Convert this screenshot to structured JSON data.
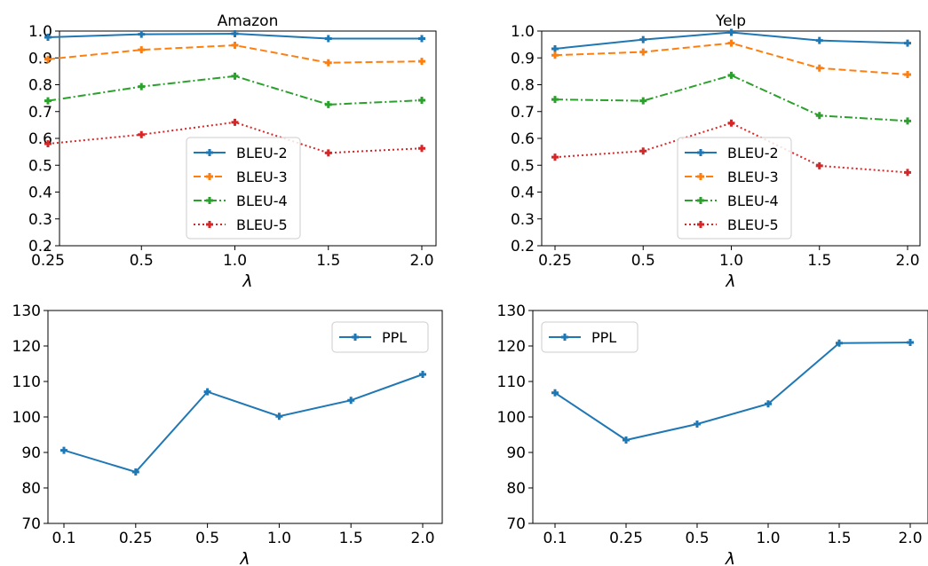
{
  "colors": {
    "BLEU-2": "#1f77b4",
    "BLEU-3": "#ff7f0e",
    "BLEU-4": "#2ca02c",
    "BLEU-5": "#d62728",
    "PPL": "#1f77b4"
  },
  "chart_data": [
    {
      "type": "line",
      "title": "Amazon",
      "xlabel": "λ",
      "categories": [
        "0.25",
        "0.5",
        "1.0",
        "1.5",
        "2.0"
      ],
      "ylim": [
        0.2,
        1.0
      ],
      "yticks": [
        "0.2",
        "0.3",
        "0.4",
        "0.5",
        "0.6",
        "0.7",
        "0.8",
        "0.9",
        "1.0"
      ],
      "legend": "center",
      "grid": false,
      "series": [
        {
          "name": "BLEU-2",
          "style": "solid",
          "values": [
            0.977,
            0.988,
            0.99,
            0.972,
            0.972
          ]
        },
        {
          "name": "BLEU-3",
          "style": "dashed",
          "values": [
            0.895,
            0.93,
            0.947,
            0.882,
            0.887
          ]
        },
        {
          "name": "BLEU-4",
          "style": "dashdot",
          "values": [
            0.74,
            0.793,
            0.832,
            0.726,
            0.742
          ]
        },
        {
          "name": "BLEU-5",
          "style": "dotted",
          "values": [
            0.58,
            0.614,
            0.66,
            0.546,
            0.563
          ]
        }
      ]
    },
    {
      "type": "line",
      "title": "Yelp",
      "xlabel": "λ",
      "categories": [
        "0.25",
        "0.5",
        "1.0",
        "1.5",
        "2.0"
      ],
      "ylim": [
        0.2,
        1.0
      ],
      "yticks": [
        "0.2",
        "0.3",
        "0.4",
        "0.5",
        "0.6",
        "0.7",
        "0.8",
        "0.9",
        "1.0"
      ],
      "legend": "center",
      "grid": false,
      "series": [
        {
          "name": "BLEU-2",
          "style": "solid",
          "values": [
            0.934,
            0.968,
            0.995,
            0.965,
            0.955
          ]
        },
        {
          "name": "BLEU-3",
          "style": "dashed",
          "values": [
            0.91,
            0.922,
            0.955,
            0.862,
            0.838
          ]
        },
        {
          "name": "BLEU-4",
          "style": "dashdot",
          "values": [
            0.745,
            0.74,
            0.835,
            0.685,
            0.665
          ]
        },
        {
          "name": "BLEU-5",
          "style": "dotted",
          "values": [
            0.53,
            0.553,
            0.657,
            0.498,
            0.473
          ]
        }
      ]
    },
    {
      "type": "line",
      "title": "",
      "xlabel": "λ",
      "categories": [
        "0.1",
        "0.25",
        "0.5",
        "1.0",
        "1.5",
        "2.0"
      ],
      "ylim": [
        70,
        130
      ],
      "yticks": [
        "70",
        "80",
        "90",
        "100",
        "110",
        "120",
        "130"
      ],
      "legend": "top-right",
      "grid": false,
      "series": [
        {
          "name": "PPL",
          "style": "solid",
          "values": [
            90.6,
            84.5,
            107.1,
            100.2,
            104.7,
            112.0
          ]
        }
      ]
    },
    {
      "type": "line",
      "title": "",
      "xlabel": "λ",
      "categories": [
        "0.1",
        "0.25",
        "0.5",
        "1.0",
        "1.5",
        "2.0"
      ],
      "ylim": [
        70,
        130
      ],
      "yticks": [
        "70",
        "80",
        "90",
        "100",
        "110",
        "120",
        "130"
      ],
      "legend": "top-left",
      "grid": false,
      "series": [
        {
          "name": "PPL",
          "style": "solid",
          "values": [
            106.8,
            93.5,
            98.0,
            103.7,
            120.8,
            121.0
          ]
        }
      ]
    }
  ]
}
